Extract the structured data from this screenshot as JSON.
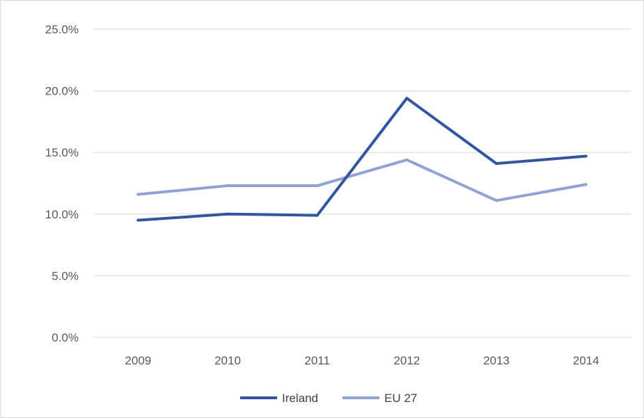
{
  "chart_data": {
    "type": "line",
    "title": "",
    "xlabel": "",
    "ylabel": "",
    "categories": [
      "2009",
      "2010",
      "2011",
      "2012",
      "2013",
      "2014"
    ],
    "ylim": [
      0,
      25
    ],
    "y_ticks": [
      0,
      5,
      10,
      15,
      20,
      25
    ],
    "y_tick_labels": [
      "0.0%",
      "5.0%",
      "10.0%",
      "15.0%",
      "20.0%",
      "25.0%"
    ],
    "grid": true,
    "legend_position": "bottom",
    "series": [
      {
        "name": "Ireland",
        "values": [
          9.5,
          10.0,
          9.9,
          19.4,
          14.1,
          14.7
        ],
        "color": "#2f55a4"
      },
      {
        "name": "EU 27",
        "values": [
          11.6,
          12.3,
          12.3,
          14.4,
          11.1,
          12.4
        ],
        "color": "#8fa2d8"
      }
    ]
  }
}
